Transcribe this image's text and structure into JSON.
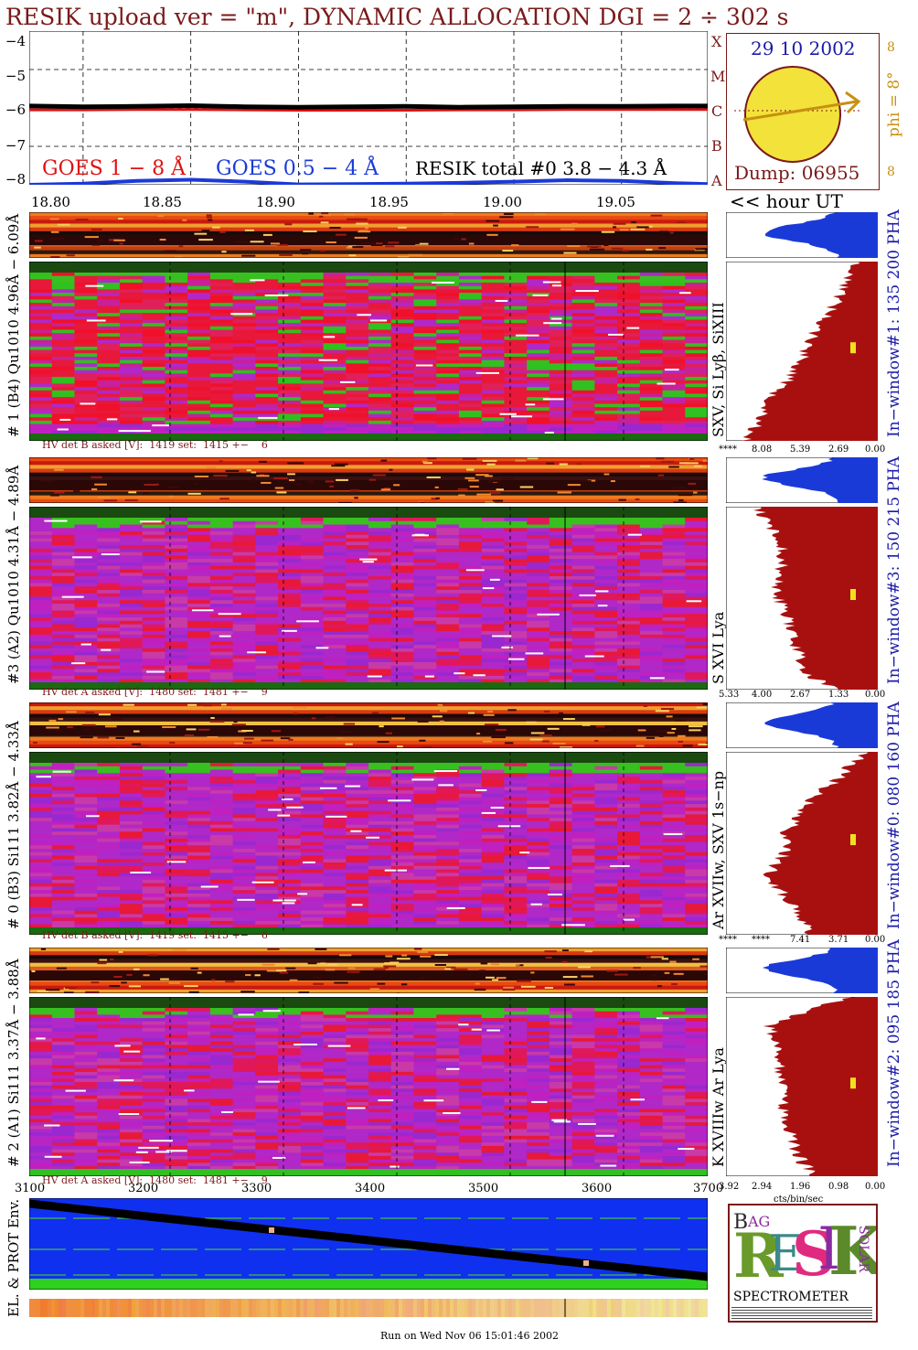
{
  "header": {
    "title": "RESIK upload ver = \"m\", DYNAMIC ALLOCATION  DGI =   2 ÷ 302 s"
  },
  "goes_panel": {
    "y_ticks": [
      "−4",
      "−5",
      "−6",
      "−7",
      "−8"
    ],
    "x_ticks": [
      "18.80",
      "18.85",
      "18.90",
      "18.95",
      "19.00",
      "19.05"
    ],
    "x_unit_label": "<< hour UT",
    "legend": {
      "goes_long": "GOES 1 − 8 Å",
      "goes_short": "GOES 0.5 − 4 Å",
      "resik_total": "RESIK total #0  3.8 − 4.3 Å"
    },
    "class_labels": [
      "A",
      "B",
      "C",
      "M",
      "X"
    ],
    "colors": {
      "goes_long": "#e01010",
      "goes_short": "#1a3ad8",
      "resik": "#000000"
    }
  },
  "sun_box": {
    "date": "29 10 2002",
    "dump": "Dump: 06955",
    "phi_label": "phi =  8°",
    "phi_marks": [
      "8",
      "8"
    ]
  },
  "detectors": [
    {
      "label": "# 1 (B4) Qu1010 4.96Å − 6.09Å",
      "lines": "SXV, Si Lyβ, SiXIII",
      "window": "In−window#1:  135 200 PHA",
      "hv": "HV det B asked [V]:  1419 set:  1415 +−    6",
      "scale": [
        "****",
        "8.08",
        "5.39",
        "2.69",
        "0.00"
      ]
    },
    {
      "label": "#3 (A2) Qu1010  4.31Å − 4.89Å",
      "lines": "S XVI Lya",
      "window": "In−window#3:  150 215 PHA",
      "hv": "HV det A asked [V]:  1480 set:  1481 +−    9",
      "scale": [
        "5.33",
        "4.00",
        "2.67",
        "1.33",
        "0.00"
      ]
    },
    {
      "label": "# 0 (B3) Si111  3.82Å − 4.33Å",
      "lines": "Ar XVIIw,  SXV 1s−np",
      "window": "In−window#0:  080 160 PHA",
      "hv": "HV det B asked [V]:  1419 set:  1415 +−    6",
      "scale": [
        "****",
        "****",
        "7.41",
        "3.71",
        "0.00"
      ]
    },
    {
      "label": "# 2 (A1) Si111  3.37Å − 3.88Å",
      "lines": "K XVIIIw  Ar Lya",
      "window": "In−window#2:  095 185 PHA",
      "hv": "HV det A asked [V]:  1480 set:  1481 +−    9",
      "scale": [
        "3.92",
        "2.94",
        "1.96",
        "0.98",
        "0.00"
      ]
    }
  ],
  "bottom_axis": {
    "ticks": [
      "3100",
      "3200",
      "3300",
      "3400",
      "3500",
      "3600",
      "3700"
    ],
    "unit": "cts/bin/sec"
  },
  "env_panel": {
    "label": "EL. & PROT Env."
  },
  "logo": {
    "letters": "RESIK",
    "bragg": "BRAGG",
    "solar": "SOLAR",
    "subtitle": "SPECTROMETER"
  },
  "footer": {
    "run": "Run on Wed Nov 06 15:01:46 2002"
  },
  "chart_data": [
    {
      "type": "line",
      "title": "RESIK upload ver = \"m\", DYNAMIC ALLOCATION  DGI =   2 ÷ 302 s",
      "xlabel": "<< hour UT",
      "ylabel": "",
      "xlim": [
        18.775,
        19.09
      ],
      "ylim": [
        -8,
        -4
      ],
      "x": [
        18.775,
        18.8,
        18.825,
        18.85,
        18.875,
        18.9,
        18.925,
        18.95,
        18.975,
        19.0,
        19.025,
        19.05,
        19.075,
        19.09
      ],
      "series": [
        {
          "name": "GOES 1 − 8 Å",
          "values": [
            -6.05,
            -6.05,
            -6.04,
            -6.04,
            -6.05,
            -6.06,
            -6.06,
            -6.06,
            -6.05,
            -6.05,
            -6.04,
            -6.04,
            -6.04,
            -6.04
          ]
        },
        {
          "name": "GOES 0.5 − 4 Å",
          "values": [
            -8.0,
            -7.97,
            -7.9,
            -7.87,
            -7.92,
            -7.99,
            -7.98,
            -7.97,
            -7.95,
            -7.92,
            -7.88,
            -7.9,
            -7.96,
            -7.98
          ]
        },
        {
          "name": "RESIK total #0  3.8 − 4.3 Å",
          "values": [
            -5.95,
            -5.97,
            -5.96,
            -5.94,
            -5.97,
            -5.98,
            -5.97,
            -5.96,
            -5.98,
            -5.97,
            -5.96,
            -5.96,
            -5.95,
            -5.95
          ]
        }
      ],
      "grid": true
    }
  ]
}
